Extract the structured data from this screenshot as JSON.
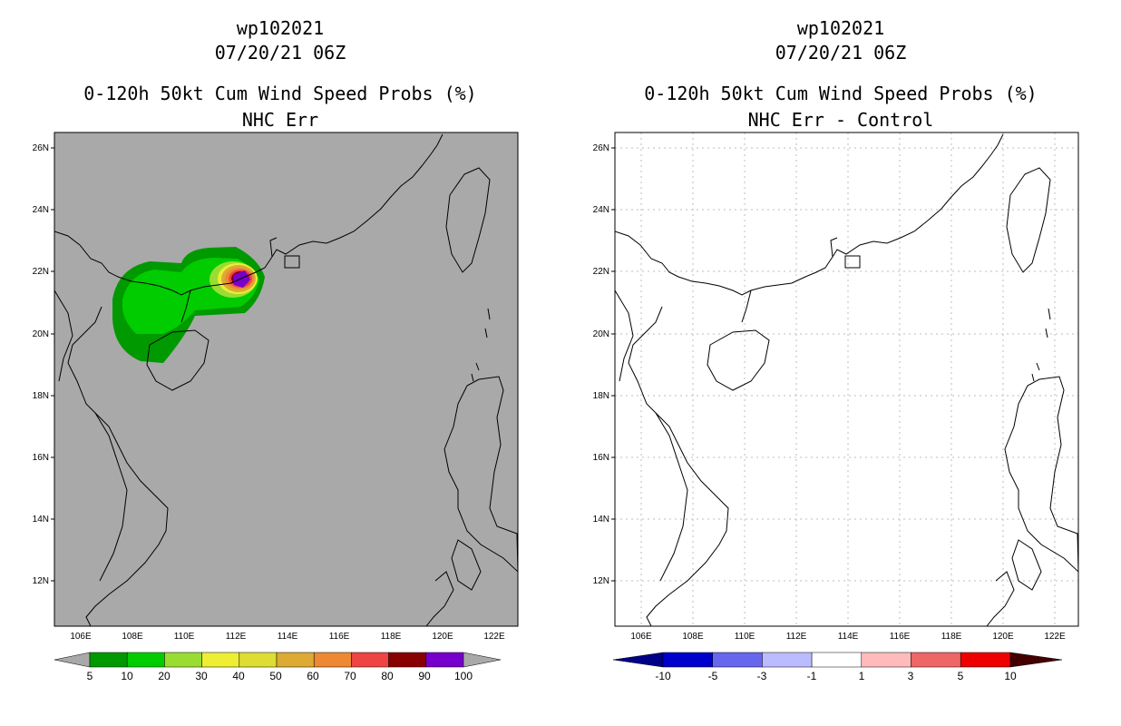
{
  "colors": {
    "land_sea_left": "#a9a9a9",
    "coast": "#000000",
    "grid": "#c8c8c8"
  },
  "map": {
    "lat_labels": [
      "26N",
      "24N",
      "22N",
      "20N",
      "18N",
      "16N",
      "14N",
      "12N"
    ],
    "lon_labels": [
      "106E",
      "108E",
      "110E",
      "112E",
      "114E",
      "116E",
      "118E",
      "120E",
      "122E"
    ]
  },
  "left_panel": {
    "storm_id": "wp102021",
    "datetime": "07/20/21 06Z",
    "product": "0-120h 50kt Cum Wind Speed Probs (%)",
    "subtitle": "NHC Err",
    "colorbar": {
      "labels": [
        "5",
        "10",
        "20",
        "30",
        "40",
        "50",
        "60",
        "70",
        "80",
        "90",
        "100"
      ],
      "colors": [
        "#009900",
        "#00cc00",
        "#99dd33",
        "#eeee33",
        "#dddd33",
        "#ddaa33",
        "#ee8833",
        "#ee4444",
        "#880000",
        "#7700cc"
      ]
    }
  },
  "right_panel": {
    "storm_id": "wp102021",
    "datetime": "07/20/21 06Z",
    "product": "0-120h 50kt Cum Wind Speed Probs (%)",
    "subtitle": "NHC Err - Control",
    "colorbar": {
      "labels": [
        "-10",
        "-5",
        "-3",
        "-1",
        "1",
        "3",
        "5",
        "10"
      ],
      "colors": [
        "#0000cc",
        "#6666ee",
        "#bbbbff",
        "#ffffff",
        "#ffbbbb",
        "#ee6666",
        "#ee0000",
        "#770000"
      ]
    }
  }
}
